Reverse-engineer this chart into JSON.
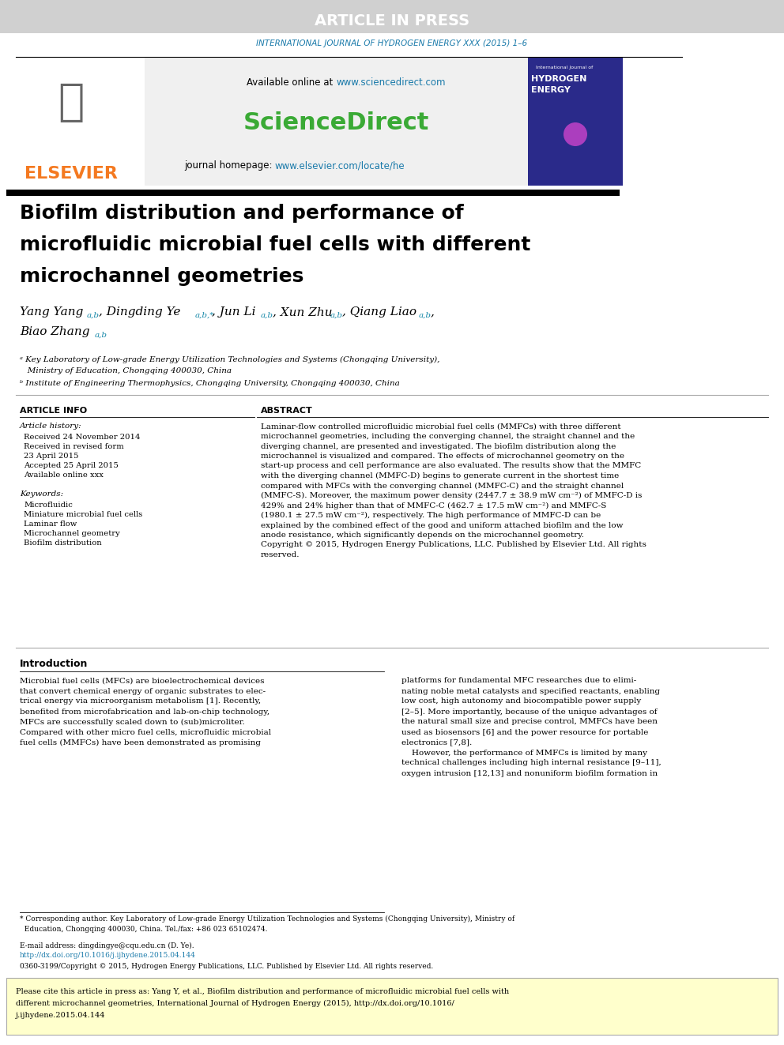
{
  "article_in_press_bg": "#d0d0d0",
  "article_in_press_text": "ARTICLE IN PRESS",
  "journal_line": "INTERNATIONAL JOURNAL OF HYDROGEN ENERGY XXX (2015) 1–6",
  "journal_line_color": "#1a7aaa",
  "available_online": "Available online at ",
  "sciencedirect_url": "www.sciencedirect.com",
  "sciencedirect_text": "ScienceDirect",
  "sciencedirect_color": "#3aaa35",
  "journal_homepage": "journal homepage: ",
  "elsevier_url": "www.elsevier.com/locate/he",
  "elsevier_url_color": "#1a7aaa",
  "elsevier_text": "ELSEVIER",
  "elsevier_color": "#f47920",
  "separator_color": "#000000",
  "paper_title": "Biofilm distribution and performance of\nmicrofluidic microbial fuel cells with different\nmicrochannel geometries",
  "paper_title_color": "#000000",
  "authors": "Yang Yang ",
  "authors_color": "#000000",
  "cyan_color": "#1a8aaa",
  "affiliation_a": "° Key Laboratory of Low-grade Energy Utilization Technologies and Systems (Chongqing University),\n  Ministry of Education, Chongqing 400030, China",
  "affiliation_b": "ᵇ Institute of Engineering Thermophysics, Chongqing University, Chongqing 400030, China",
  "article_info_title": "ARTICLE INFO",
  "article_history": "Article history:",
  "received_1": "Received 24 November 2014",
  "received_2": "Received in revised form",
  "date_revised": "23 April 2015",
  "accepted": "Accepted 25 April 2015",
  "available": "Available online xxx",
  "keywords_title": "Keywords:",
  "keywords": [
    "Microfluidic",
    "Miniature microbial fuel cells",
    "Laminar flow",
    "Microchannel geometry",
    "Biofilm distribution"
  ],
  "abstract_title": "ABSTRACT",
  "abstract_text": "Laminar-flow controlled microfluidic microbial fuel cells (MMFCs) with three different\nmicrochannel geometries, including the converging channel, the straight channel and the\ndiverging channel, are presented and investigated. The biofilm distribution along the\nmicrochannel is visualized and compared. The effects of microchannel geometry on the\nstart-up process and cell performance are also evaluated. The results show that the MMFC\nwith the diverging channel (MMFC-D) begins to generate current in the shortest time\ncompared with MFCs with the converging channel (MMFC-C) and the straight channel\n(MMFC-S). Moreover, the maximum power density (2447.7 ± 38.9 mW cm⁻²) of MMFC-D is\n429% and 24% higher than that of MMFC-C (462.7 ± 17.5 mW cm⁻²) and MMFC-S\n(1980.1 ± 27.5 mW cm⁻²), respectively. The high performance of MMFC-D can be\nexplained by the combined effect of the good and uniform attached biofilm and the low\nanode resistance, which significantly depends on the microchannel geometry.\nCopyright © 2015, Hydrogen Energy Publications, LLC. Published by Elsevier Ltd. All rights\nreserved.",
  "intro_title": "Introduction",
  "intro_left": "Microbial fuel cells (MFCs) are bioelectrochemical devices\nthat convert chemical energy of organic substrates to elec-\ntrical energy via microorganism metabolism [1]. Recently,\nbenefited from microfabrication and lab-on-chip technology,\nMFCs are successfully scaled down to (sub)microliter.\nCompared with other micro fuel cells, microfluidic microbial\nfuel cells (MMFCs) have been demonstrated as promising",
  "intro_right": "platforms for fundamental MFC researches due to elimi-\nnating noble metal catalysts and specified reactants, enabling\nlow cost, high autonomy and biocompatible power supply\n[2–5]. More importantly, because of the unique advantages of\nthe natural small size and precise control, MMFCs have been\nused as biosensors [6] and the power resource for portable\nelectronics [7,8].\n    However, the performance of MMFCs is limited by many\ntechnical challenges including high internal resistance [9–11],\noxygen intrusion [12,13] and nonuniform biofilm formation in",
  "footnote_star": "* Corresponding author. Key Laboratory of Low-grade Energy Utilization Technologies and Systems (Chongqing University), Ministry of\n  Education, Chongqing 400030, China. Tel./fax: +86 023 65102474.",
  "footnote_email": "E-mail address: dingdingye@cqu.edu.cn (D. Ye).",
  "footnote_doi": "http://dx.doi.org/10.1016/j.ijhydene.2015.04.144",
  "issn": "0360-3199/Copyright © 2015, Hydrogen Energy Publications, LLC. Published by Elsevier Ltd. All rights reserved.",
  "cite_box_text": "Please cite this article in press as: Yang Y, et al., Biofilm distribution and performance of microfluidic microbial fuel cells with\ndifferent microchannel geometries, International Journal of Hydrogen Energy (2015), http://dx.doi.org/10.1016/\nj.ijhydene.2015.04.144",
  "cite_box_bg": "#ffffcc",
  "bg_color": "#ffffff"
}
